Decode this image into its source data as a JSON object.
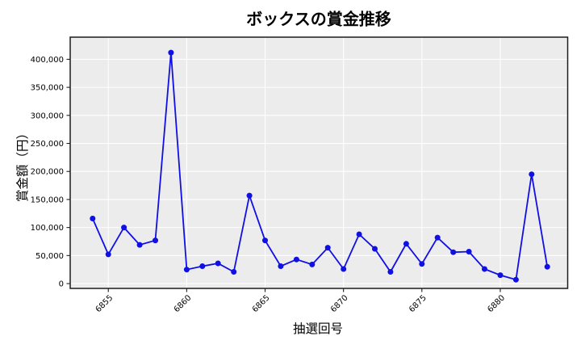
{
  "figure": {
    "background": "#ffffff"
  },
  "chart_data": {
    "type": "line",
    "title": "ボックスの賞金推移",
    "xlabel": "抽選回号",
    "ylabel": "賞金額（円）",
    "x": [
      6854,
      6855,
      6856,
      6857,
      6858,
      6859,
      6860,
      6861,
      6862,
      6863,
      6864,
      6865,
      6866,
      6867,
      6868,
      6869,
      6870,
      6871,
      6872,
      6873,
      6874,
      6875,
      6876,
      6877,
      6878,
      6879,
      6880,
      6881,
      6882,
      6883
    ],
    "values": [
      116000,
      52000,
      100000,
      69000,
      77000,
      412000,
      25000,
      31000,
      36000,
      21000,
      157000,
      77000,
      31000,
      43000,
      34000,
      64000,
      26000,
      88000,
      62000,
      21000,
      71000,
      35000,
      82000,
      56000,
      57000,
      26000,
      15000,
      7000,
      195000,
      30000
    ],
    "xticks": {
      "values": [
        6855,
        6860,
        6865,
        6870,
        6875,
        6880
      ],
      "labels": [
        "6855",
        "6860",
        "6865",
        "6870",
        "6875",
        "6880"
      ]
    },
    "yticks": {
      "values": [
        0,
        50000,
        100000,
        150000,
        200000,
        250000,
        300000,
        350000,
        400000
      ],
      "labels": [
        "0",
        "50,000",
        "100,000",
        "150,000",
        "200,000",
        "250,000",
        "300,000",
        "350,000",
        "400,000"
      ]
    },
    "xlim": [
      6852.57,
      6884.3
    ],
    "ylim": [
      -8600,
      439500
    ],
    "grid": true,
    "legend": false,
    "style": {
      "line_color": "#0f0fe6",
      "marker_color": "#0f0fe6",
      "plot_background": "#ececec",
      "grid_color": "#ffffff",
      "spine_color": "#1c1c1c",
      "text_color": "#000000"
    }
  }
}
